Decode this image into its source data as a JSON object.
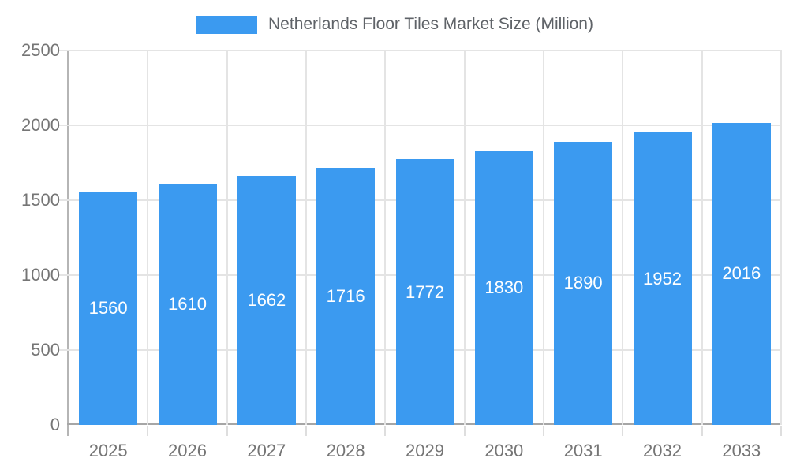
{
  "legend": {
    "label": "Netherlands Floor Tiles Market Size (Million)"
  },
  "chart_data": {
    "type": "bar",
    "title": "Netherlands Floor Tiles Market Size (Million)",
    "categories": [
      "2025",
      "2026",
      "2027",
      "2028",
      "2029",
      "2030",
      "2031",
      "2032",
      "2033"
    ],
    "values": [
      1560,
      1610,
      1662,
      1716,
      1772,
      1830,
      1890,
      1952,
      2016
    ],
    "xlabel": "",
    "ylabel": "",
    "ylim": [
      0,
      2500
    ],
    "yticks": [
      0,
      500,
      1000,
      1500,
      2000,
      2500
    ],
    "grid": true,
    "legend_position": "top-center",
    "value_labels": "inside-center"
  },
  "colors": {
    "bar": "#3b9af0",
    "bar_value_text": "#ffffff",
    "axis_text": "#757575",
    "legend_text": "#5f6368",
    "gridline": "#e4e4e4",
    "x_axis_line": "#a6a6a6",
    "y_axis_line": "#b5b5b5",
    "tick": "#dedede",
    "background": "#ffffff"
  }
}
